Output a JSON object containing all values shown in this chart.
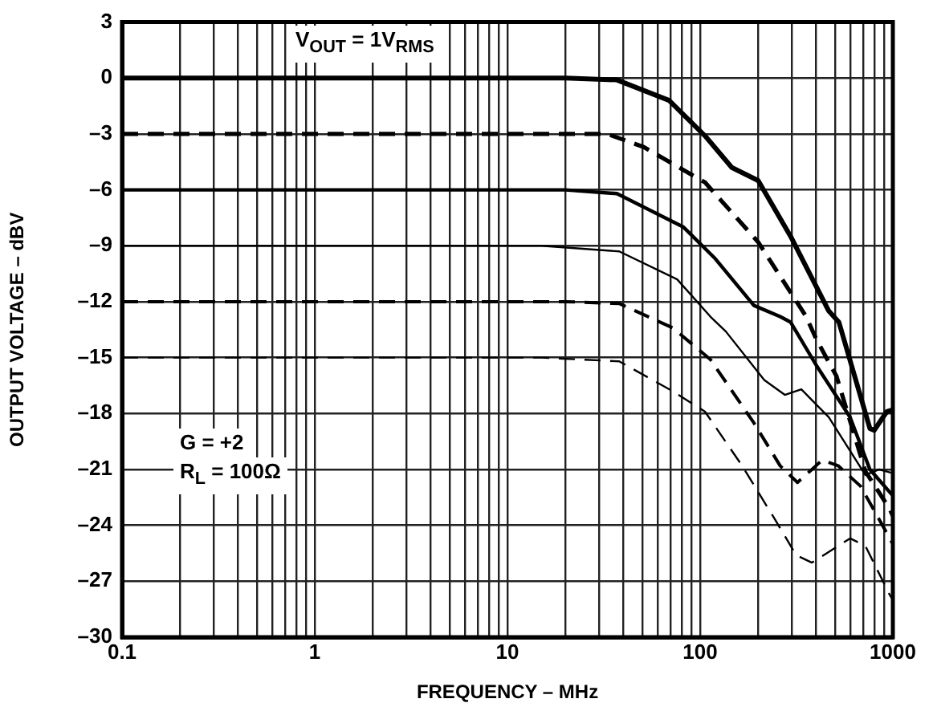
{
  "chart_data": {
    "type": "line",
    "xlabel": "FREQUENCY – MHz",
    "ylabel": "OUTPUT VOLTAGE – dBV",
    "log": "x",
    "grid": true,
    "legend": false,
    "marker": "none",
    "annotations": [
      "V$_{OUT}$ = 1V$_{RMS}$",
      "G = +2",
      "R$_{L}$ = 100Ω"
    ],
    "xlim": [
      0.1,
      1000
    ],
    "ylim": [
      -30,
      3
    ],
    "xticks": [
      0.1,
      {
        "value": 0.2,
        "label": null
      },
      {
        "value": 0.3,
        "label": null
      },
      {
        "value": 0.4,
        "label": null
      },
      {
        "value": 0.5,
        "label": null
      },
      {
        "value": 0.6,
        "label": null
      },
      {
        "value": 0.7,
        "label": null
      },
      {
        "value": 0.8,
        "label": null
      },
      {
        "value": 0.9,
        "label": null
      },
      1,
      {
        "value": 2,
        "label": null
      },
      {
        "value": 3,
        "label": null
      },
      {
        "value": 4,
        "label": null
      },
      {
        "value": 5,
        "label": null
      },
      {
        "value": 6,
        "label": null
      },
      {
        "value": 7,
        "label": null
      },
      {
        "value": 8,
        "label": null
      },
      {
        "value": 9,
        "label": null
      },
      10,
      {
        "value": 20,
        "label": null
      },
      {
        "value": 30,
        "label": null
      },
      {
        "value": 40,
        "label": null
      },
      {
        "value": 50,
        "label": null
      },
      {
        "value": 60,
        "label": null
      },
      {
        "value": 70,
        "label": null
      },
      {
        "value": 80,
        "label": null
      },
      {
        "value": 90,
        "label": null
      },
      100,
      {
        "value": 200,
        "label": null
      },
      {
        "value": 300,
        "label": null
      },
      {
        "value": 400,
        "label": null
      },
      {
        "value": 500,
        "label": null
      },
      {
        "value": 600,
        "label": null
      },
      {
        "value": 700,
        "label": null
      },
      {
        "value": 800,
        "label": null
      },
      {
        "value": 900,
        "label": null
      },
      1000
    ],
    "yticks": [
      {
        "value": -30,
        "label": "–30"
      },
      {
        "value": -27,
        "label": "–27"
      },
      {
        "value": -24,
        "label": "–24"
      },
      {
        "value": -21,
        "label": "–21"
      },
      {
        "value": -18,
        "label": "–18"
      },
      {
        "value": -15,
        "label": "–15"
      },
      {
        "value": -12,
        "label": "–12"
      },
      {
        "value": -9,
        "label": "–9"
      },
      {
        "value": -6,
        "label": "–6"
      },
      {
        "value": -3,
        "label": "–3"
      },
      0,
      3
    ],
    "series": [
      {
        "color": "#000000",
        "line_style": "solid",
        "x": [
          0.1,
          20,
          37,
          69,
          106,
          146,
          200,
          295,
          465,
          525,
          760,
          800,
          930,
          1000
        ],
        "values": [
          0,
          0,
          -0.1,
          -1.2,
          -3.1,
          -4.8,
          -5.5,
          -8.5,
          -12.5,
          -13.1,
          -18.8,
          -18.9,
          -17.9,
          -17.8
        ]
      },
      {
        "color": "#000000",
        "line_style": "dashed",
        "x": [
          0.1,
          20,
          33,
          51,
          106,
          200,
          355,
          400,
          510,
          720,
          960,
          1000
        ],
        "values": [
          -3,
          -3,
          -3,
          -3.7,
          -5.6,
          -8.8,
          -12.8,
          -14,
          -16,
          -21.1,
          -23.1,
          -23.5
        ]
      },
      {
        "color": "#000000",
        "line_style": "solid",
        "x": [
          0.1,
          20,
          37,
          82,
          120,
          190,
          260,
          295,
          400,
          600,
          760,
          960,
          1000
        ],
        "values": [
          -6,
          -6,
          -6.2,
          -8,
          -9.7,
          -12.2,
          -12.8,
          -13.1,
          -15.4,
          -18.2,
          -21,
          -22.2,
          -22.4
        ]
      },
      {
        "color": "#000000",
        "line_style": "solid",
        "x": [
          0.1,
          15,
          38,
          76,
          113,
          136,
          215,
          275,
          335,
          465,
          720,
          850,
          1000
        ],
        "values": [
          -9,
          -9,
          -9.3,
          -10.8,
          -12.8,
          -13.6,
          -16.2,
          -17,
          -16.7,
          -18.2,
          -21.3,
          -21,
          -21.2
        ]
      },
      {
        "color": "#000000",
        "line_style": "dashed",
        "x": [
          0.1,
          20,
          38,
          72,
          113,
          190,
          260,
          320,
          430,
          520,
          680,
          1000
        ],
        "values": [
          -12,
          -12,
          -12.1,
          -13.4,
          -15.1,
          -18.5,
          -20.8,
          -21.7,
          -20.5,
          -20.8,
          -21.9,
          -25
        ]
      },
      {
        "color": "#000000",
        "line_style": "dashed",
        "x": [
          0.1,
          15,
          38,
          72,
          106,
          165,
          245,
          315,
          380,
          600,
          720,
          960,
          1000
        ],
        "values": [
          -15,
          -15,
          -15.2,
          -16.8,
          -17.9,
          -20.8,
          -23.7,
          -25.6,
          -26,
          -24.7,
          -25.1,
          -27.7,
          -28
        ]
      }
    ]
  }
}
